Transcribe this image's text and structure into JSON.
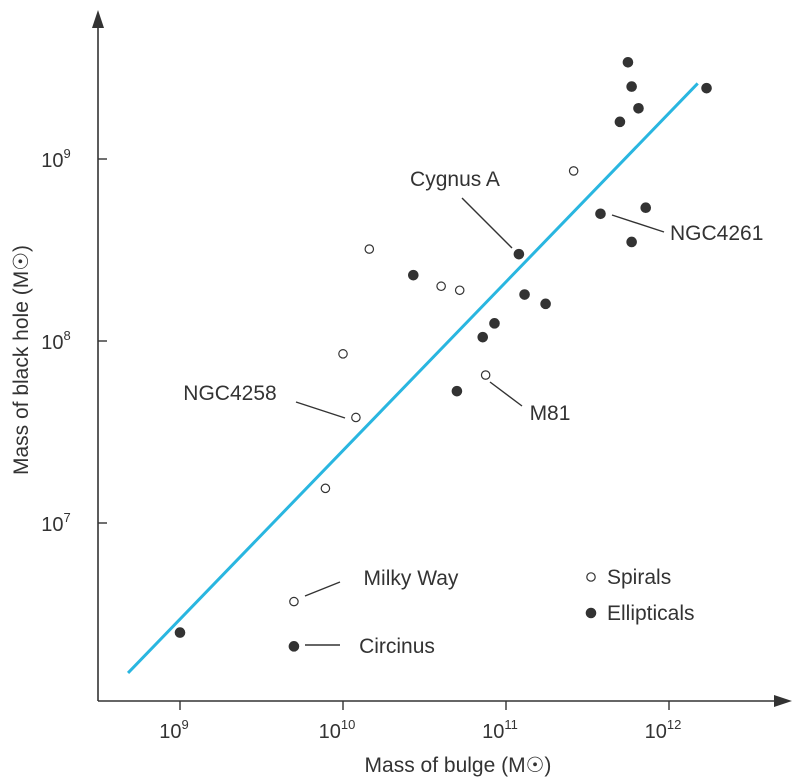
{
  "chart_data": {
    "type": "scatter",
    "xlabel": "Mass of bulge (M☉)",
    "ylabel": "Mass of black hole (M☉)",
    "xscale": "log",
    "yscale": "log",
    "xlim": [
      450000000.0,
      6000000000000.0
    ],
    "ylim": [
      650000.0,
      6000000000.0
    ],
    "x_ticks": [
      {
        "value": 1000000000.0,
        "base": "10",
        "exp": "9"
      },
      {
        "value": 10000000000.0,
        "base": "10",
        "exp": "10"
      },
      {
        "value": 100000000000.0,
        "base": "10",
        "exp": "11"
      },
      {
        "value": 1000000000000.0,
        "base": "10",
        "exp": "12"
      }
    ],
    "y_ticks": [
      {
        "value": 10000000.0,
        "base": "10",
        "exp": "7"
      },
      {
        "value": 100000000.0,
        "base": "10",
        "exp": "8"
      },
      {
        "value": 1000000000.0,
        "base": "10",
        "exp": "9"
      }
    ],
    "series": [
      {
        "name": "Spirals",
        "marker": "open-circle",
        "points": [
          {
            "x": 5000000000.0,
            "y": 3700000.0
          },
          {
            "x": 7800000000.0,
            "y": 15500000.0
          },
          {
            "x": 12000000000.0,
            "y": 38000000.0
          },
          {
            "x": 10000000000.0,
            "y": 85000000.0
          },
          {
            "x": 14500000000.0,
            "y": 320000000.0
          },
          {
            "x": 40000000000.0,
            "y": 200000000.0
          },
          {
            "x": 52000000000.0,
            "y": 190000000.0
          },
          {
            "x": 75000000000.0,
            "y": 65000000.0
          },
          {
            "x": 260000000000.0,
            "y": 860000000.0
          }
        ]
      },
      {
        "name": "Ellipticals",
        "marker": "filled-circle",
        "points": [
          {
            "x": 1000000000.0,
            "y": 2500000.0
          },
          {
            "x": 5000000000.0,
            "y": 2100000.0
          },
          {
            "x": 27000000000.0,
            "y": 230000000.0
          },
          {
            "x": 50000000000.0,
            "y": 53000000.0
          },
          {
            "x": 72000000000.0,
            "y": 105000000.0
          },
          {
            "x": 85000000000.0,
            "y": 125000000.0
          },
          {
            "x": 120000000000.0,
            "y": 300000000.0
          },
          {
            "x": 130000000000.0,
            "y": 180000000.0
          },
          {
            "x": 175000000000.0,
            "y": 160000000.0
          },
          {
            "x": 380000000000.0,
            "y": 500000000.0
          },
          {
            "x": 500000000000.0,
            "y": 1600000000.0
          },
          {
            "x": 560000000000.0,
            "y": 3400000000.0
          },
          {
            "x": 590000000000.0,
            "y": 2500000000.0
          },
          {
            "x": 650000000000.0,
            "y": 1900000000.0
          },
          {
            "x": 590000000000.0,
            "y": 350000000.0
          },
          {
            "x": 720000000000.0,
            "y": 540000000.0
          },
          {
            "x": 1700000000000.0,
            "y": 2450000000.0
          }
        ]
      }
    ],
    "fit_line": {
      "x": [
        480000000.0,
        1500000000000.0
      ],
      "y": [
        1500000.0,
        2600000000.0
      ],
      "color": "#29b6e0"
    },
    "annotations": [
      {
        "text": "Cygnus A",
        "target": {
          "x": 120000000000.0,
          "y": 300000000.0
        }
      },
      {
        "text": "NGC4261",
        "target": {
          "x": 380000000000.0,
          "y": 500000000.0
        }
      },
      {
        "text": "NGC4258",
        "target": {
          "x": 12000000000.0,
          "y": 38000000.0
        }
      },
      {
        "text": "M81",
        "target": {
          "x": 75000000000.0,
          "y": 65000000.0
        }
      },
      {
        "text": "Milky Way",
        "target": {
          "x": 5000000000.0,
          "y": 3700000.0
        }
      },
      {
        "text": "Circinus",
        "target": {
          "x": 5000000000.0,
          "y": 2100000.0
        }
      }
    ],
    "legend": {
      "position": "bottom-right",
      "items": [
        {
          "label": "Spirals",
          "marker": "open-circle"
        },
        {
          "label": "Ellipticals",
          "marker": "filled-circle"
        }
      ]
    },
    "grid": false
  }
}
